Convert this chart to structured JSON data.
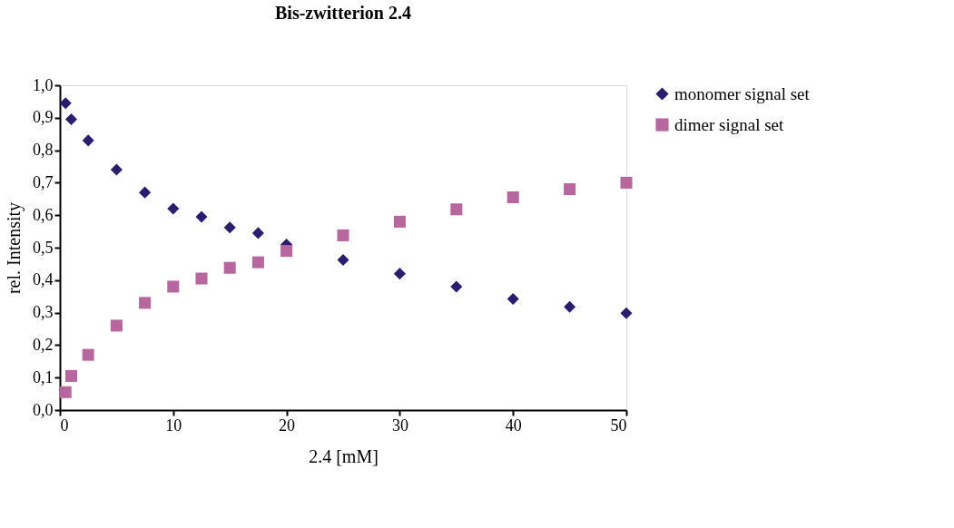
{
  "chart_data": {
    "type": "scatter",
    "title": "Bis-zwitterion 2.4",
    "xlabel": "2.4 [mM]",
    "ylabel": "rel. Intensity",
    "x": [
      0.5,
      1,
      2.5,
      5,
      7.5,
      10,
      12.5,
      15,
      17.5,
      20,
      25,
      30,
      35,
      40,
      45,
      50
    ],
    "series": [
      {
        "name": "monomer signal set",
        "color": "#2b1d6e",
        "marker": "diamond",
        "values": [
          0.945,
          0.895,
          0.83,
          0.74,
          0.67,
          0.62,
          0.595,
          0.562,
          0.545,
          0.51,
          0.462,
          0.42,
          0.38,
          0.342,
          0.318,
          0.298
        ]
      },
      {
        "name": "dimer signal set",
        "color": "#b8669e",
        "marker": "square",
        "values": [
          0.055,
          0.105,
          0.17,
          0.26,
          0.33,
          0.38,
          0.405,
          0.438,
          0.455,
          0.49,
          0.538,
          0.58,
          0.618,
          0.655,
          0.68,
          0.7
        ]
      }
    ],
    "xlim": [
      0,
      50
    ],
    "xticks": [
      0,
      10,
      20,
      30,
      40,
      50
    ],
    "ylim": [
      0,
      1
    ],
    "yticks": [
      {
        "value": 0,
        "label": "0,0"
      },
      {
        "value": 0.1,
        "label": "0,1"
      },
      {
        "value": 0.2,
        "label": "0,2"
      },
      {
        "value": 0.3,
        "label": "0,3"
      },
      {
        "value": 0.4,
        "label": "0,4"
      },
      {
        "value": 0.5,
        "label": "0,5"
      },
      {
        "value": 0.6,
        "label": "0,6"
      },
      {
        "value": 0.7,
        "label": "0,7"
      },
      {
        "value": 0.8,
        "label": "0,8"
      },
      {
        "value": 0.9,
        "label": "0,9"
      },
      {
        "value": 1,
        "label": "1,0"
      }
    ],
    "grid": false,
    "legend": "right"
  }
}
